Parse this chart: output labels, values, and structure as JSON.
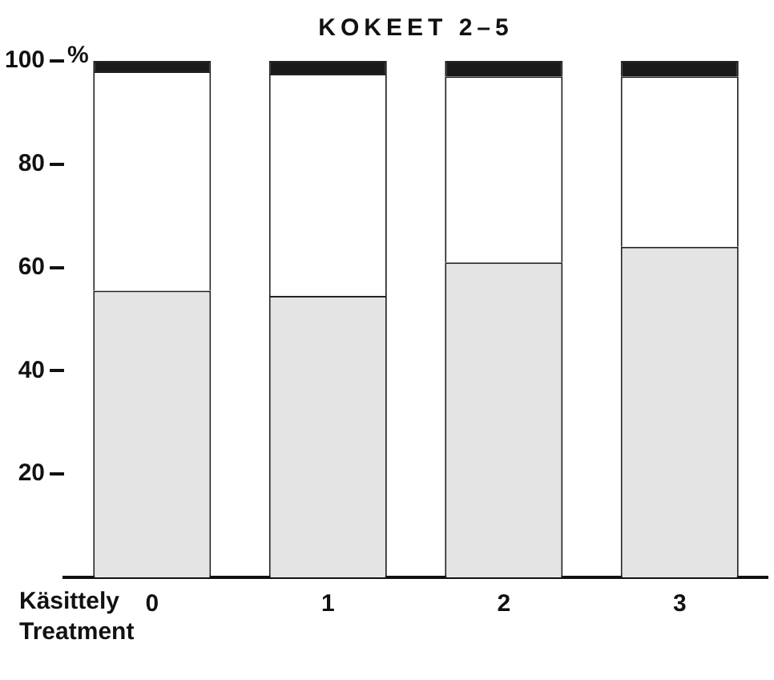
{
  "chart_data": {
    "type": "bar",
    "title": "KOKEET 2–5",
    "xlabel": "Käsittely\nTreatment",
    "ylabel": "%",
    "categories": [
      "0",
      "1",
      "2",
      "3"
    ],
    "stacked": true,
    "series": [
      {
        "color": "#e4e4e4",
        "values": [
          55.5,
          54.5,
          61,
          64
        ]
      },
      {
        "color": "#ffffff",
        "values": [
          42.5,
          43,
          36,
          33
        ]
      },
      {
        "color": "#1a1a1a",
        "values": [
          2,
          2.5,
          3,
          3
        ]
      }
    ],
    "ylim": [
      0,
      100
    ],
    "yticks": [
      20,
      40,
      60,
      80,
      100
    ],
    "grid": false,
    "legend": false
  }
}
